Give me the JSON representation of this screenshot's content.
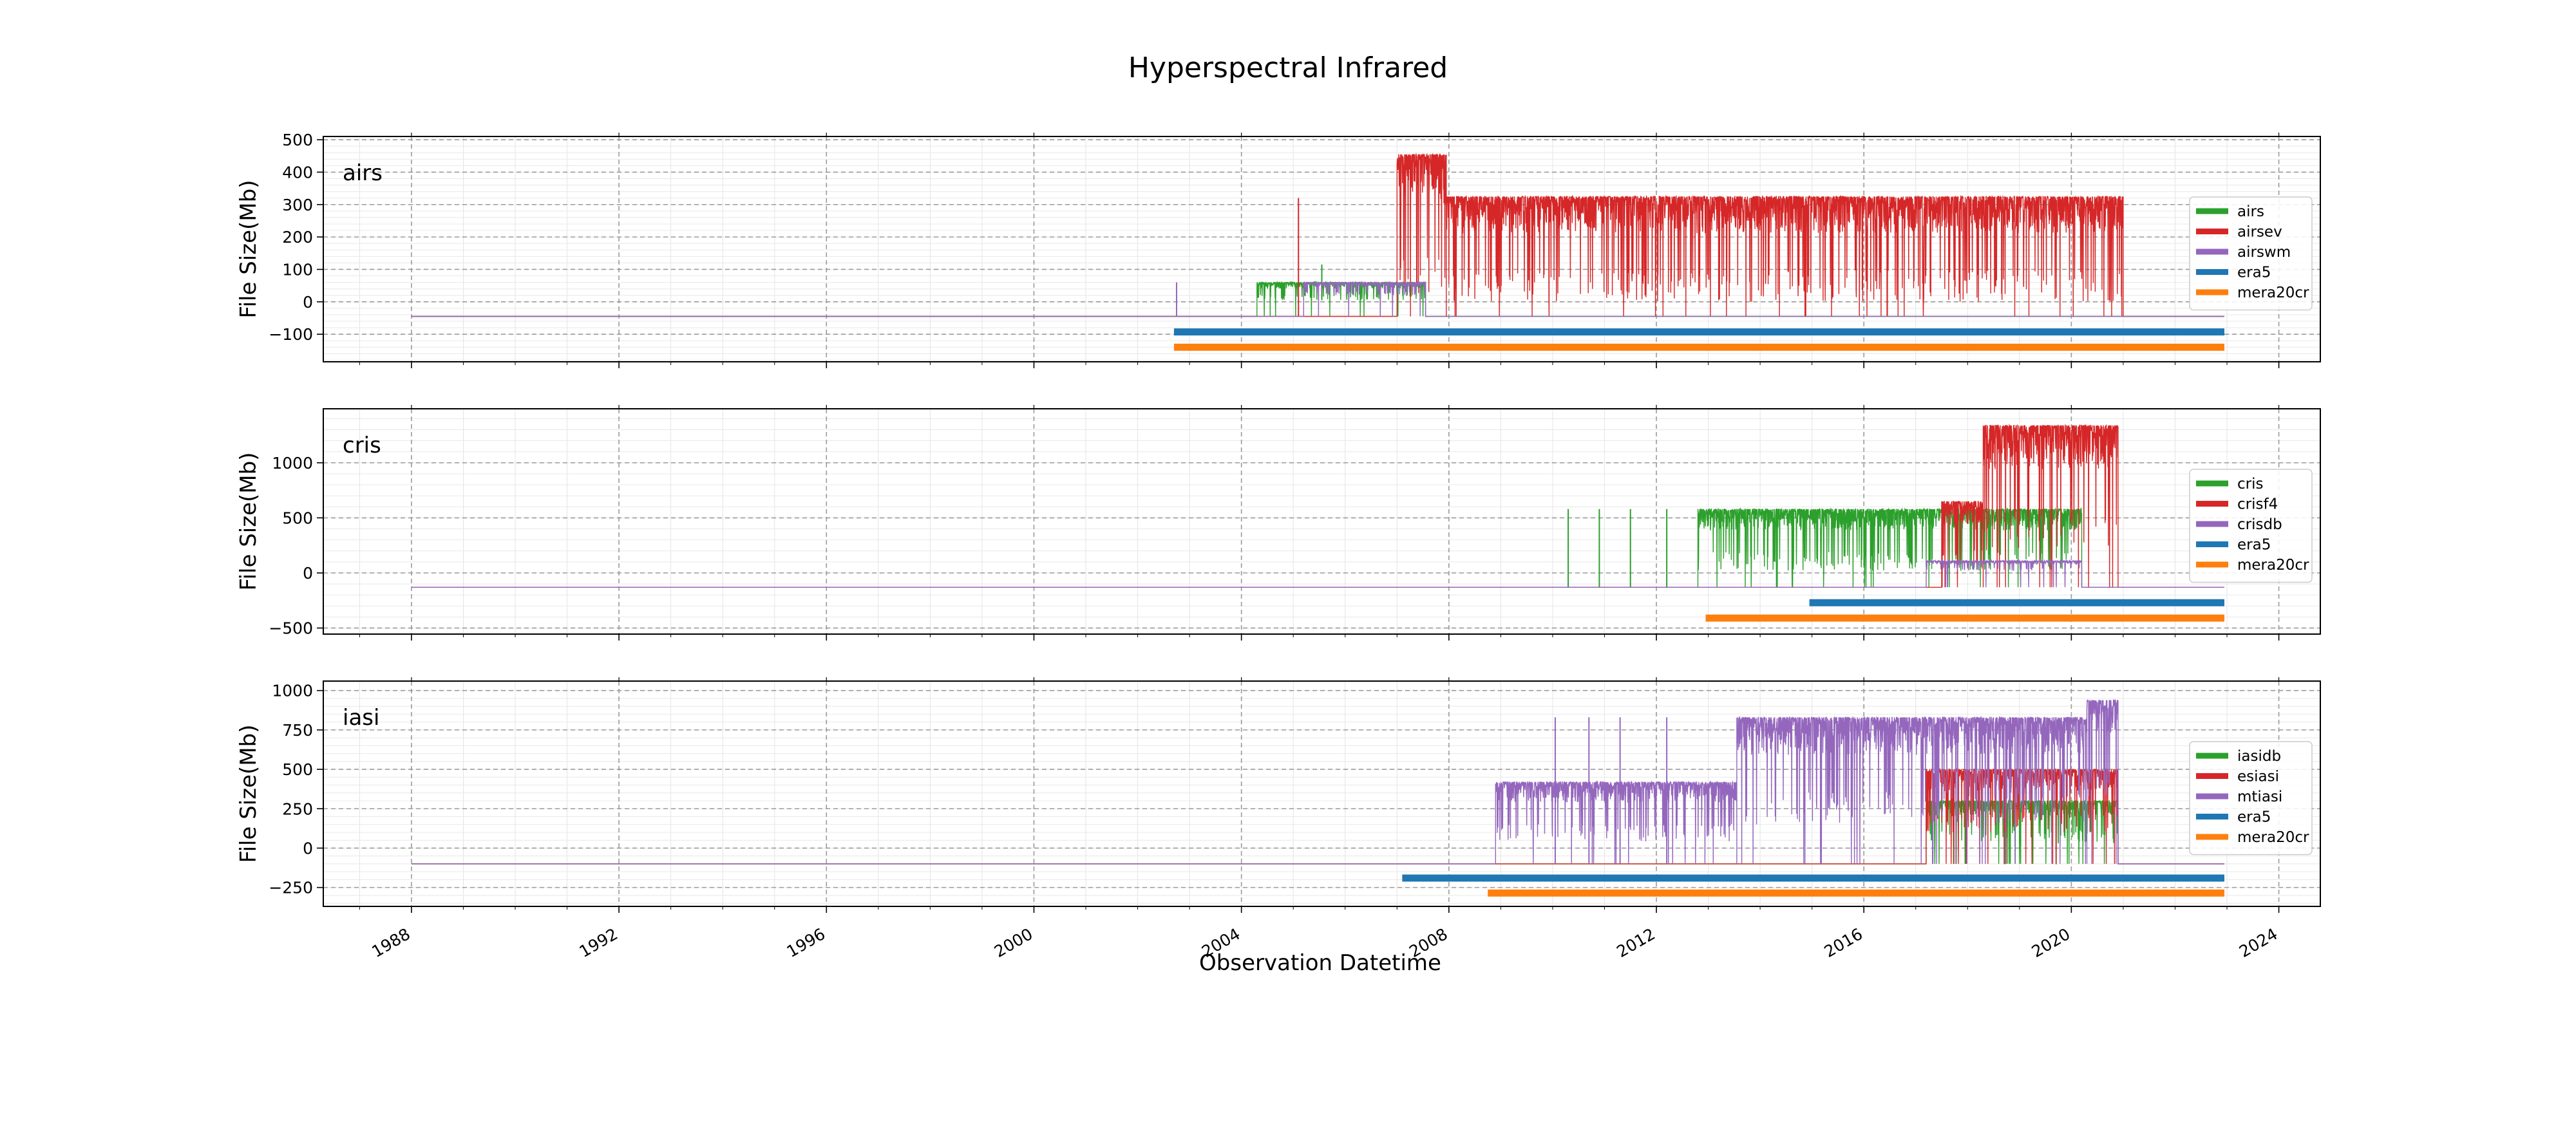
{
  "figure": {
    "title": "Hyperspectral Infrared",
    "xlabel": "Observation Datetime",
    "x_ticks": [
      "1988",
      "1992",
      "1996",
      "2000",
      "2004",
      "2008",
      "2012",
      "2016",
      "2020",
      "2024"
    ]
  },
  "colors": {
    "green": "#2ca02c",
    "red": "#d62728",
    "purple": "#9467bd",
    "blue": "#1f77b4",
    "orange": "#ff7f0e"
  },
  "chart_data": [
    {
      "type": "line",
      "panel_label": "airs",
      "ylabel": "File Size(Mb)",
      "xlim": [
        1986.3,
        2024.8
      ],
      "ylim": [
        -185,
        510
      ],
      "y_ticks": [
        -100,
        0,
        100,
        200,
        300,
        400,
        500
      ],
      "y_tick_labels": [
        "−100",
        "0",
        "100",
        "200",
        "300",
        "400",
        "500"
      ],
      "grid": true,
      "legend_position": "right",
      "series": [
        {
          "name": "airs",
          "color": "green",
          "role": "data",
          "baseline": -45,
          "segments": [
            {
              "start": 2004.3,
              "end": 2007.55,
              "low": 5,
              "high": 60,
              "spikes": [
                [
                  2005.55,
                  115
                ]
              ]
            }
          ]
        },
        {
          "name": "airsev",
          "color": "red",
          "role": "data",
          "baseline": -45,
          "segments": [
            {
              "start": 2007.0,
              "end": 2007.95,
              "low": 0,
              "high": 455
            },
            {
              "start": 2007.95,
              "end": 2021.0,
              "low": 0,
              "high": 325
            }
          ],
          "spikes": [
            [
              2005.1,
              320
            ]
          ]
        },
        {
          "name": "airswm",
          "color": "purple",
          "role": "data",
          "baseline": -45,
          "segments": [
            {
              "start": 2005.2,
              "end": 2007.55,
              "low": 20,
              "high": 60
            }
          ],
          "spikes": [
            [
              2002.75,
              60
            ]
          ]
        },
        {
          "name": "era5",
          "color": "blue",
          "role": "coverage",
          "start": 2002.7,
          "end": 2022.95,
          "y": -93
        },
        {
          "name": "mera20cr",
          "color": "orange",
          "role": "coverage",
          "start": 2002.7,
          "end": 2022.95,
          "y": -140
        }
      ]
    },
    {
      "type": "line",
      "panel_label": "cris",
      "ylabel": "File Size(Mb)",
      "xlim": [
        1986.3,
        2024.8
      ],
      "ylim": [
        -555,
        1490
      ],
      "y_ticks": [
        -500,
        0,
        500,
        1000
      ],
      "y_tick_labels": [
        "−500",
        "0",
        "500",
        "1000"
      ],
      "grid": true,
      "legend_position": "right",
      "series": [
        {
          "name": "cris",
          "color": "green",
          "role": "data",
          "baseline": -130,
          "segments": [
            {
              "start": 2012.8,
              "end": 2020.2,
              "low": 20,
              "high": 580
            }
          ],
          "spikes": [
            [
              2010.3,
              580
            ],
            [
              2010.9,
              580
            ],
            [
              2011.5,
              580
            ],
            [
              2012.2,
              580
            ]
          ]
        },
        {
          "name": "crisf4",
          "color": "red",
          "role": "data",
          "baseline": -130,
          "segments": [
            {
              "start": 2017.5,
              "end": 2018.3,
              "low": 30,
              "high": 650
            },
            {
              "start": 2018.3,
              "end": 2020.9,
              "low": 200,
              "high": 1340
            }
          ]
        },
        {
          "name": "crisdb",
          "color": "purple",
          "role": "data",
          "baseline": -130,
          "segments": [
            {
              "start": 2017.2,
              "end": 2020.2,
              "low": 20,
              "high": 110
            }
          ]
        },
        {
          "name": "era5",
          "color": "blue",
          "role": "coverage",
          "start": 2014.95,
          "end": 2022.95,
          "y": -270
        },
        {
          "name": "mera20cr",
          "color": "orange",
          "role": "coverage",
          "start": 2012.95,
          "end": 2022.95,
          "y": -410
        }
      ]
    },
    {
      "type": "line",
      "panel_label": "iasi",
      "ylabel": "File Size(Mb)",
      "xlim": [
        1986.3,
        2024.8
      ],
      "ylim": [
        -370,
        1060
      ],
      "y_ticks": [
        -250,
        0,
        250,
        500,
        750,
        1000
      ],
      "y_tick_labels": [
        "−250",
        "0",
        "250",
        "500",
        "750",
        "1000"
      ],
      "grid": true,
      "legend_position": "right",
      "series": [
        {
          "name": "iasidb",
          "color": "green",
          "role": "data",
          "baseline": -100,
          "segments": [
            {
              "start": 2017.2,
              "end": 2020.9,
              "low": 30,
              "high": 300
            }
          ]
        },
        {
          "name": "esiasi",
          "color": "red",
          "role": "data",
          "baseline": -100,
          "segments": [
            {
              "start": 2017.2,
              "end": 2020.9,
              "low": 100,
              "high": 500
            }
          ]
        },
        {
          "name": "mtiasi",
          "color": "purple",
          "role": "data",
          "baseline": -100,
          "segments": [
            {
              "start": 2008.9,
              "end": 2013.55,
              "low": 40,
              "high": 420
            },
            {
              "start": 2013.55,
              "end": 2020.3,
              "low": 150,
              "high": 830
            },
            {
              "start": 2020.3,
              "end": 2020.9,
              "low": 300,
              "high": 940
            }
          ],
          "spikes": [
            [
              2010.05,
              830
            ],
            [
              2010.7,
              830
            ],
            [
              2011.3,
              830
            ],
            [
              2012.2,
              830
            ]
          ]
        },
        {
          "name": "era5",
          "color": "blue",
          "role": "coverage",
          "start": 2007.1,
          "end": 2022.95,
          "y": -190
        },
        {
          "name": "mera20cr",
          "color": "orange",
          "role": "coverage",
          "start": 2008.75,
          "end": 2022.95,
          "y": -285
        }
      ]
    }
  ]
}
